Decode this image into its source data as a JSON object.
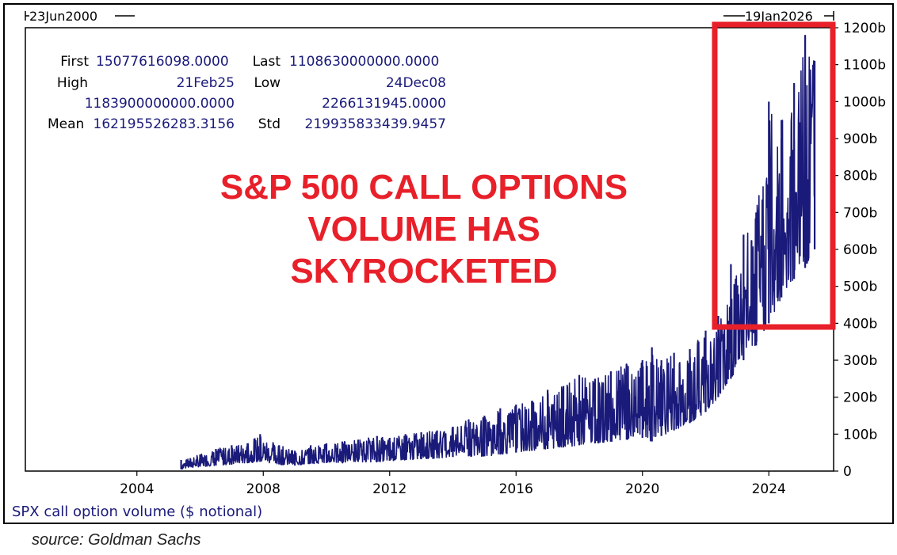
{
  "chart_data": {
    "type": "line",
    "range_start": "23Jun2000",
    "range_end": "19Jan2026",
    "xlim": [
      2000.47,
      2026.05
    ],
    "ylim": [
      0,
      1200
    ],
    "x_ticks": [
      {
        "label": "2004",
        "value": 2004
      },
      {
        "label": "2008",
        "value": 2008
      },
      {
        "label": "2012",
        "value": 2012
      },
      {
        "label": "2016",
        "value": 2016
      },
      {
        "label": "2020",
        "value": 2020
      },
      {
        "label": "2024",
        "value": 2024
      }
    ],
    "y_ticks": [
      {
        "label": "0",
        "value": 0
      },
      {
        "label": "100b",
        "value": 100
      },
      {
        "label": "200b",
        "value": 200
      },
      {
        "label": "300b",
        "value": 300
      },
      {
        "label": "400b",
        "value": 400
      },
      {
        "label": "500b",
        "value": 500
      },
      {
        "label": "600b",
        "value": 600
      },
      {
        "label": "700b",
        "value": 700
      },
      {
        "label": "800b",
        "value": 800
      },
      {
        "label": "900b",
        "value": 900
      },
      {
        "label": "1000b",
        "value": 1000
      },
      {
        "label": "1100b",
        "value": 1100
      },
      {
        "label": "1200b",
        "value": 1200
      }
    ],
    "series": [
      {
        "name": "SPX call option volume ($ notional)",
        "color": "#1a1a7a",
        "x": [
          2005.4,
          2006.0,
          2006.5,
          2007.0,
          2007.5,
          2007.9,
          2008.5,
          2009.0,
          2009.5,
          2010.0,
          2010.5,
          2011.0,
          2011.6,
          2012.0,
          2012.5,
          2013.0,
          2013.5,
          2014.0,
          2014.5,
          2015.0,
          2015.5,
          2016.0,
          2016.5,
          2017.0,
          2017.5,
          2018.0,
          2018.5,
          2019.0,
          2019.5,
          2020.0,
          2020.3,
          2020.6,
          2021.0,
          2021.5,
          2022.0,
          2022.4,
          2022.8,
          2023.2,
          2023.6,
          2024.0,
          2024.4,
          2024.8,
          2025.15,
          2025.45
        ],
        "low": [
          5,
          12,
          15,
          18,
          22,
          25,
          18,
          15,
          20,
          22,
          22,
          25,
          25,
          28,
          30,
          32,
          35,
          38,
          40,
          40,
          45,
          50,
          55,
          60,
          65,
          70,
          75,
          80,
          85,
          90,
          80,
          95,
          110,
          130,
          160,
          200,
          250,
          300,
          340,
          400,
          470,
          520,
          550,
          600
        ],
        "high": [
          30,
          45,
          60,
          70,
          75,
          100,
          70,
          55,
          70,
          75,
          80,
          85,
          95,
          90,
          100,
          105,
          110,
          120,
          140,
          150,
          170,
          180,
          190,
          220,
          230,
          260,
          250,
          270,
          290,
          300,
          335,
          300,
          320,
          330,
          380,
          420,
          560,
          640,
          700,
          1000,
          950,
          1050,
          1180,
          1110
        ],
        "first": "15077616098.0000",
        "last": "1108630000000.0000",
        "high_date": "21Feb25",
        "high_value": "1183900000000.0000",
        "low_date": "24Dec08",
        "low_value": "2266131945.0000",
        "mean": "162195526283.3156",
        "std": "219935833439.9457"
      }
    ]
  },
  "stats_labels": {
    "first": "First",
    "last": "Last",
    "high": "High",
    "low": "Low",
    "mean": "Mean",
    "std": "Std"
  },
  "headline": {
    "line1": "S&P 500 CALL OPTIONS",
    "line2": "VOLUME HAS",
    "line3": "SKYROCKETED"
  },
  "highlight_color": "#e8202a",
  "legend_label": "SPX call option volume ($ notional)",
  "source": "source: Goldman Sachs"
}
